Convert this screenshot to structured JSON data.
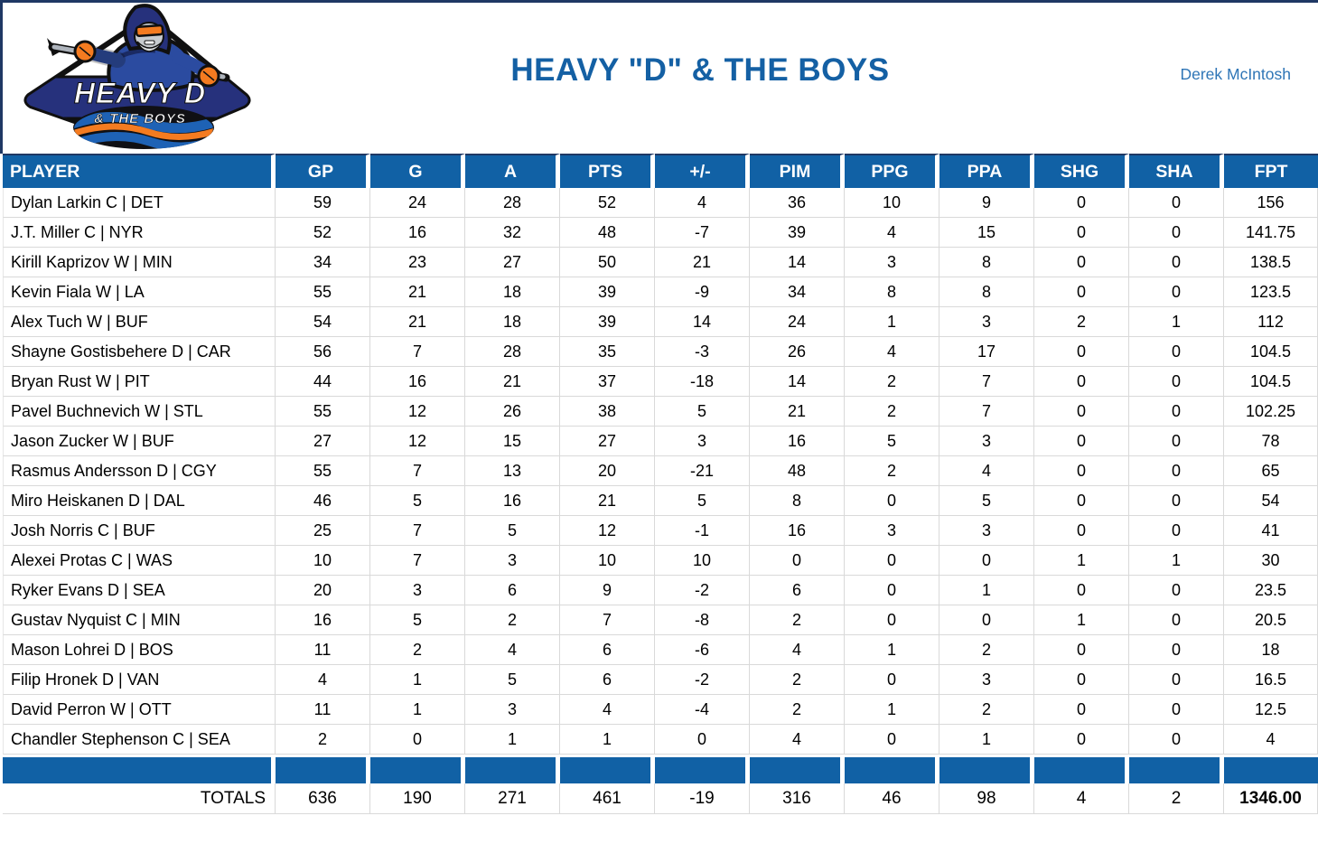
{
  "header": {
    "title": "HEAVY \"D\" & THE BOYS",
    "owner": "Derek McIntosh"
  },
  "logo": {
    "line1": "HEAVY D",
    "line2": "& THE BOYS"
  },
  "table": {
    "columns": [
      "PLAYER",
      "GP",
      "G",
      "A",
      "PTS",
      "+/-",
      "PIM",
      "PPG",
      "PPA",
      "SHG",
      "SHA",
      "FPT"
    ],
    "rows": [
      [
        "Dylan Larkin C | DET",
        "59",
        "24",
        "28",
        "52",
        "4",
        "36",
        "10",
        "9",
        "0",
        "0",
        "156"
      ],
      [
        "J.T. Miller C | NYR",
        "52",
        "16",
        "32",
        "48",
        "-7",
        "39",
        "4",
        "15",
        "0",
        "0",
        "141.75"
      ],
      [
        "Kirill Kaprizov W | MIN",
        "34",
        "23",
        "27",
        "50",
        "21",
        "14",
        "3",
        "8",
        "0",
        "0",
        "138.5"
      ],
      [
        "Kevin Fiala W | LA",
        "55",
        "21",
        "18",
        "39",
        "-9",
        "34",
        "8",
        "8",
        "0",
        "0",
        "123.5"
      ],
      [
        "Alex Tuch W | BUF",
        "54",
        "21",
        "18",
        "39",
        "14",
        "24",
        "1",
        "3",
        "2",
        "1",
        "112"
      ],
      [
        "Shayne Gostisbehere D | CAR",
        "56",
        "7",
        "28",
        "35",
        "-3",
        "26",
        "4",
        "17",
        "0",
        "0",
        "104.5"
      ],
      [
        "Bryan Rust W | PIT",
        "44",
        "16",
        "21",
        "37",
        "-18",
        "14",
        "2",
        "7",
        "0",
        "0",
        "104.5"
      ],
      [
        "Pavel Buchnevich W | STL",
        "55",
        "12",
        "26",
        "38",
        "5",
        "21",
        "2",
        "7",
        "0",
        "0",
        "102.25"
      ],
      [
        "Jason Zucker W | BUF",
        "27",
        "12",
        "15",
        "27",
        "3",
        "16",
        "5",
        "3",
        "0",
        "0",
        "78"
      ],
      [
        "Rasmus Andersson D | CGY",
        "55",
        "7",
        "13",
        "20",
        "-21",
        "48",
        "2",
        "4",
        "0",
        "0",
        "65"
      ],
      [
        "Miro Heiskanen D | DAL",
        "46",
        "5",
        "16",
        "21",
        "5",
        "8",
        "0",
        "5",
        "0",
        "0",
        "54"
      ],
      [
        "Josh Norris C | BUF",
        "25",
        "7",
        "5",
        "12",
        "-1",
        "16",
        "3",
        "3",
        "0",
        "0",
        "41"
      ],
      [
        "Alexei Protas C | WAS",
        "10",
        "7",
        "3",
        "10",
        "10",
        "0",
        "0",
        "0",
        "1",
        "1",
        "30"
      ],
      [
        "Ryker Evans D | SEA",
        "20",
        "3",
        "6",
        "9",
        "-2",
        "6",
        "0",
        "1",
        "0",
        "0",
        "23.5"
      ],
      [
        "Gustav Nyquist C | MIN",
        "16",
        "5",
        "2",
        "7",
        "-8",
        "2",
        "0",
        "0",
        "1",
        "0",
        "20.5"
      ],
      [
        "Mason Lohrei D | BOS",
        "11",
        "2",
        "4",
        "6",
        "-6",
        "4",
        "1",
        "2",
        "0",
        "0",
        "18"
      ],
      [
        "Filip Hronek D | VAN",
        "4",
        "1",
        "5",
        "6",
        "-2",
        "2",
        "0",
        "3",
        "0",
        "0",
        "16.5"
      ],
      [
        "David Perron W | OTT",
        "11",
        "1",
        "3",
        "4",
        "-4",
        "2",
        "1",
        "2",
        "0",
        "0",
        "12.5"
      ],
      [
        "Chandler Stephenson C | SEA",
        "2",
        "0",
        "1",
        "1",
        "0",
        "4",
        "0",
        "1",
        "0",
        "0",
        "4"
      ]
    ],
    "totals": {
      "label": "TOTALS",
      "values": [
        "636",
        "190",
        "271",
        "461",
        "-19",
        "316",
        "46",
        "98",
        "4",
        "2",
        "1346.00"
      ]
    }
  },
  "colors": {
    "header_blue": "#1161A5",
    "border_navy": "#1F3864",
    "gridline_gray": "#D9D9D9",
    "title_blue": "#1460A4",
    "owner_blue": "#2E75B6",
    "logo_navy": "#26317C",
    "logo_royal": "#2B4BA0",
    "logo_orange": "#F47B20"
  }
}
